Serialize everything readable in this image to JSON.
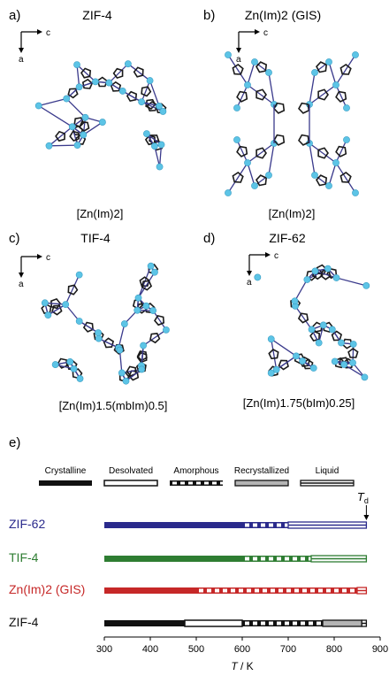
{
  "panels": [
    {
      "letter": "a)",
      "title": "ZIF-4",
      "axis_h": "c",
      "axis_v": "a",
      "formula": "[Zn(Im)2]"
    },
    {
      "letter": "b)",
      "title": "Zn(Im)2 (GIS)",
      "axis_h": "c",
      "axis_v": "a",
      "formula": "[Zn(Im)2]"
    },
    {
      "letter": "c)",
      "title": "TIF-4",
      "axis_h": "c",
      "axis_v": "a",
      "formula": "[Zn(Im)1.5(mbIm)0.5]"
    },
    {
      "letter": "d)",
      "title": "ZIF-62",
      "axis_h": "c",
      "axis_v": "a",
      "formula": "[Zn(Im)1.75(bIm)0.25]"
    }
  ],
  "panel_e_letter": "e)",
  "colors": {
    "crystalline": "#111111",
    "recrystallized": "#b4b4b4",
    "atom": "#5cc4e6",
    "bond": "#3a3a8c"
  },
  "chart_data": {
    "type": "bar",
    "subtype": "horizontal-phase-timeline",
    "xlabel": "T / K",
    "xlim": [
      300,
      900
    ],
    "xticks": [
      300,
      400,
      500,
      600,
      700,
      800,
      900
    ],
    "legend_position": "top",
    "legend": [
      {
        "key": "crystalline",
        "label": "Crystalline",
        "pattern": "solid"
      },
      {
        "key": "desolvated",
        "label": "Desolvated",
        "pattern": "hollow"
      },
      {
        "key": "amorphous",
        "label": "Amorphous",
        "pattern": "dashed"
      },
      {
        "key": "recrystallized",
        "label": "Recrystallized",
        "pattern": "grey"
      },
      {
        "key": "liquid",
        "label": "Liquid",
        "pattern": "double-line"
      }
    ],
    "annotation": {
      "label": "T",
      "subscript": "d",
      "x": 870
    },
    "series": [
      {
        "name": "ZIF-62",
        "color": "#2a2a8c",
        "segments": [
          {
            "phase": "crystalline",
            "start": 300,
            "end": 600
          },
          {
            "phase": "amorphous",
            "start": 600,
            "end": 700
          },
          {
            "phase": "liquid",
            "start": 700,
            "end": 870
          }
        ]
      },
      {
        "name": "TIF-4",
        "color": "#2e7d32",
        "segments": [
          {
            "phase": "crystalline",
            "start": 300,
            "end": 600
          },
          {
            "phase": "amorphous",
            "start": 600,
            "end": 750
          },
          {
            "phase": "liquid",
            "start": 750,
            "end": 870
          }
        ]
      },
      {
        "name": "Zn(Im)2 (GIS)",
        "color": "#c62828",
        "segments": [
          {
            "phase": "crystalline",
            "start": 300,
            "end": 500
          },
          {
            "phase": "amorphous",
            "start": 500,
            "end": 850
          },
          {
            "phase": "liquid",
            "start": 850,
            "end": 870
          }
        ]
      },
      {
        "name": "ZIF-4",
        "color": "#111111",
        "segments": [
          {
            "phase": "crystalline",
            "start": 300,
            "end": 475
          },
          {
            "phase": "desolvated",
            "start": 475,
            "end": 600
          },
          {
            "phase": "amorphous",
            "start": 600,
            "end": 775
          },
          {
            "phase": "recrystallized",
            "start": 775,
            "end": 860
          },
          {
            "phase": "liquid",
            "start": 860,
            "end": 870
          }
        ]
      }
    ]
  }
}
